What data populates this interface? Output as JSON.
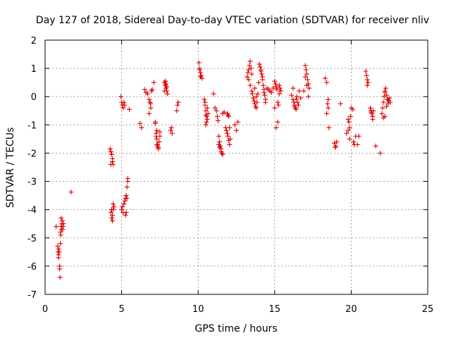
{
  "chart_data": {
    "type": "scatter",
    "title": "Day 127 of 2018, Sidereal Day-to-day VTEC variation (SDTVAR) for receiver nliv",
    "xlabel": "GPS time / hours",
    "ylabel": "SDTVAR / TECUs",
    "xlim": [
      0,
      25
    ],
    "ylim": [
      -7,
      2
    ],
    "xticks": [
      0,
      5,
      10,
      15,
      20,
      25
    ],
    "yticks": [
      -7,
      -6,
      -5,
      -4,
      -3,
      -2,
      -1,
      0,
      1,
      2
    ],
    "grid": true,
    "marker": "+",
    "color": "#e00000",
    "series": [
      {
        "name": "SDTVAR",
        "x": [
          0.72,
          0.82,
          0.85,
          0.88,
          0.9,
          0.92,
          0.95,
          0.98,
          1.0,
          1.02,
          1.05,
          1.08,
          1.1,
          1.12,
          1.15,
          1.18,
          1.2,
          0.88,
          0.95,
          1.0,
          1.05,
          1.7,
          4.25,
          4.3,
          4.35,
          4.4,
          4.45,
          4.3,
          4.4,
          4.35,
          4.3,
          4.4,
          4.45,
          4.5,
          4.35,
          4.4,
          4.45,
          4.95,
          5.0,
          5.05,
          5.1,
          5.15,
          5.2,
          5.0,
          5.05,
          5.1,
          5.15,
          5.2,
          5.25,
          5.3,
          5.35,
          5.4,
          5.3,
          5.35,
          5.4,
          5.25,
          5.5,
          6.2,
          6.3,
          6.5,
          6.6,
          6.7,
          6.8,
          6.85,
          6.9,
          6.95,
          7.0,
          6.8,
          6.9,
          7.1,
          7.2,
          7.25,
          7.3,
          7.35,
          7.4,
          7.45,
          7.5,
          7.3,
          7.4,
          7.2,
          7.25,
          7.3,
          7.35,
          7.5,
          7.8,
          7.85,
          7.9,
          7.95,
          8.0,
          7.85,
          7.9,
          7.95,
          7.8,
          8.25,
          8.3,
          8.2,
          8.6,
          8.65,
          8.7,
          10.05,
          10.1,
          10.15,
          10.2,
          10.25,
          10.1,
          10.15,
          10.4,
          10.45,
          10.5,
          10.55,
          10.6,
          10.65,
          10.5,
          10.55,
          10.45,
          10.6,
          10.5,
          11.0,
          11.1,
          11.2,
          11.25,
          11.3,
          11.35,
          11.4,
          11.45,
          11.5,
          11.55,
          11.6,
          11.35,
          11.4,
          11.5,
          11.6,
          11.7,
          11.8,
          11.85,
          11.9,
          11.95,
          12.0,
          12.05,
          11.9,
          11.95,
          12.0,
          12.05,
          12.1,
          12.4,
          12.5,
          12.6,
          13.2,
          13.25,
          13.3,
          13.35,
          13.4,
          13.45,
          13.5,
          13.3,
          13.4,
          13.5,
          13.55,
          13.6,
          13.65,
          13.7,
          13.75,
          13.8,
          13.85,
          13.9,
          13.95,
          13.7,
          13.8,
          14.0,
          14.05,
          14.1,
          14.15,
          14.2,
          14.25,
          14.3,
          14.35,
          14.4,
          14.1,
          14.2,
          14.3,
          14.5,
          14.6,
          14.7,
          14.8,
          14.9,
          14.4,
          15.0,
          15.05,
          15.1,
          15.15,
          15.2,
          15.25,
          15.3,
          15.35,
          15.4,
          15.0,
          15.1,
          15.2,
          15.3,
          16.1,
          16.2,
          16.25,
          16.3,
          16.35,
          16.4,
          16.45,
          16.5,
          16.55,
          16.6,
          16.2,
          16.3,
          16.4,
          16.7,
          16.9,
          17.0,
          17.05,
          17.1,
          17.15,
          17.2,
          17.25,
          17.0,
          17.1,
          17.2,
          18.3,
          18.4,
          18.45,
          18.5,
          18.55,
          18.4,
          18.5,
          18.9,
          18.95,
          19.0,
          19.05,
          19.3,
          19.7,
          19.8,
          19.85,
          19.9,
          19.95,
          19.8,
          19.9,
          20.0,
          20.1,
          20.15,
          20.2,
          20.3,
          20.4,
          20.5,
          20.95,
          21.0,
          21.05,
          21.1,
          21.05,
          21.25,
          21.3,
          21.35,
          21.4,
          21.45,
          21.3,
          21.4,
          21.6,
          21.9,
          22.0,
          22.05,
          22.1,
          22.15,
          22.2,
          22.25,
          22.3,
          22.35,
          22.4,
          22.45,
          22.5,
          22.55,
          22.2,
          22.3,
          22.4,
          22.1,
          22.2
        ],
        "y": [
          -4.6,
          -5.3,
          -5.5,
          -5.7,
          -5.4,
          -5.5,
          -6.0,
          -6.4,
          -5.2,
          -4.9,
          -4.6,
          -4.7,
          -4.5,
          -4.4,
          -4.7,
          -4.6,
          -4.5,
          -5.6,
          -6.1,
          -4.8,
          -4.3,
          -3.38,
          -1.85,
          -1.95,
          -2.05,
          -2.2,
          -2.4,
          -2.4,
          -2.3,
          -4.0,
          -4.1,
          -4.2,
          -4.0,
          -3.9,
          -4.3,
          -4.4,
          -3.8,
          0.0,
          -0.2,
          -0.3,
          -0.4,
          -0.2,
          -0.3,
          -4.0,
          -3.9,
          -4.1,
          -3.8,
          -3.7,
          -3.6,
          -3.5,
          -3.2,
          -3.0,
          -4.1,
          -3.6,
          -2.9,
          -4.2,
          -0.45,
          -0.95,
          -1.1,
          0.25,
          0.15,
          0.1,
          -0.1,
          -0.2,
          -0.4,
          0.2,
          0.25,
          -0.6,
          -0.25,
          0.5,
          -0.9,
          -1.3,
          -1.5,
          -1.7,
          -1.8,
          -1.6,
          -1.4,
          -1.2,
          -1.85,
          -0.95,
          -1.4,
          -1.7,
          -1.75,
          -1.25,
          0.5,
          0.4,
          0.3,
          0.2,
          0.1,
          0.55,
          0.45,
          0.35,
          0.2,
          -1.1,
          -1.3,
          -1.2,
          -0.5,
          -0.3,
          -0.2,
          1.2,
          1.0,
          0.85,
          0.75,
          0.65,
          0.95,
          0.7,
          -0.1,
          -0.3,
          -0.5,
          -0.7,
          -0.8,
          -0.6,
          -1.0,
          -0.9,
          -0.2,
          -0.4,
          -0.65,
          0.1,
          -0.4,
          -0.5,
          -0.7,
          -0.85,
          -1.4,
          -1.6,
          -1.75,
          -1.85,
          -2.0,
          -2.05,
          -1.7,
          -1.8,
          -1.95,
          -0.6,
          -0.55,
          -1.1,
          -1.2,
          -1.3,
          -1.4,
          -1.55,
          -1.7,
          -0.6,
          -0.65,
          -0.7,
          -1.1,
          -1.5,
          -1.0,
          -1.2,
          -0.9,
          0.7,
          0.85,
          0.95,
          1.1,
          1.25,
          1.0,
          0.8,
          0.6,
          0.4,
          0.2,
          0.1,
          -0.05,
          -0.15,
          -0.25,
          -0.35,
          -0.4,
          -0.2,
          0.1,
          0.5,
          0.3,
          0.0,
          1.15,
          1.05,
          0.95,
          0.8,
          0.6,
          0.4,
          0.25,
          0.05,
          -0.1,
          0.9,
          0.7,
          0.15,
          0.3,
          0.25,
          0.2,
          0.15,
          0.3,
          -0.2,
          0.55,
          0.45,
          0.35,
          0.25,
          -0.2,
          -0.3,
          0.4,
          0.3,
          0.2,
          -0.4,
          -1.1,
          -0.9,
          0.1,
          0.05,
          -0.1,
          -0.2,
          -0.3,
          -0.4,
          -0.1,
          0.0,
          -0.2,
          -0.3,
          0.2,
          0.3,
          -0.35,
          -0.45,
          -0.05,
          0.2,
          1.1,
          0.95,
          0.8,
          0.6,
          0.45,
          0.3,
          0.7,
          0.4,
          0.0,
          0.65,
          0.5,
          -0.25,
          -0.4,
          -1.1,
          -0.6,
          -0.1,
          -1.65,
          -1.8,
          -1.75,
          -1.6,
          -0.25,
          -1.3,
          -1.2,
          -0.9,
          -1.1,
          -0.7,
          -0.8,
          -1.5,
          -0.4,
          -0.45,
          -1.6,
          -1.7,
          -1.4,
          -1.7,
          -1.4,
          0.9,
          0.75,
          0.6,
          0.5,
          0.4,
          -0.4,
          -0.5,
          -0.6,
          -0.7,
          -0.5,
          -0.55,
          -0.8,
          -1.75,
          -2.0,
          -0.6,
          -0.4,
          -0.2,
          0.0,
          0.15,
          0.3,
          0.05,
          -0.1,
          -0.25,
          -0.15,
          -0.05,
          -0.2,
          -0.7,
          -0.35,
          -0.1,
          -0.75,
          0.2
        ]
      }
    ]
  }
}
